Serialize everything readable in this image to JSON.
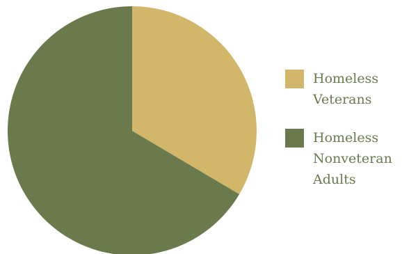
{
  "chart_data": {
    "type": "pie",
    "categories": [
      "Homeless Veterans",
      "Homeless Nonveteran Adults"
    ],
    "values": [
      33.5,
      66.5
    ],
    "colors": [
      "#d2b76a",
      "#6a7a4d"
    ],
    "legend_position": "right",
    "legend": [
      {
        "line1": "Homeless",
        "line2": "Veterans",
        "line3": ""
      },
      {
        "line1": "Homeless",
        "line2": "Nonveteran",
        "line3": "Adults"
      }
    ]
  }
}
